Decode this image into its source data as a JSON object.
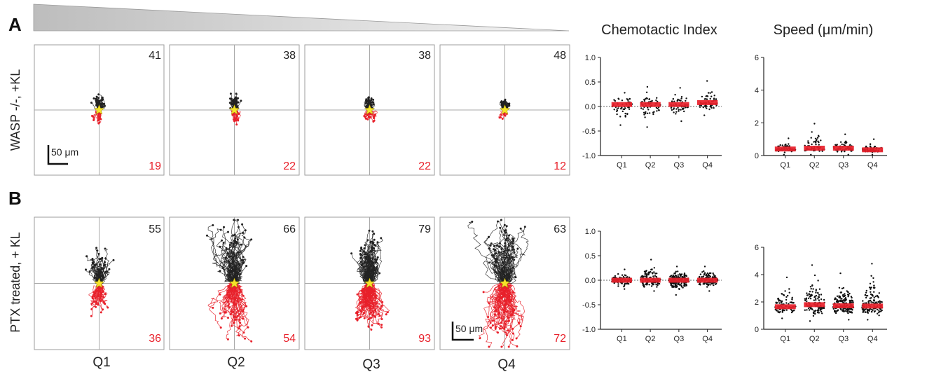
{
  "figure": {
    "gradient_colors": [
      "#bdbdbd",
      "#f4f4f4"
    ],
    "upward_color": "#222222",
    "downward_color": "#e8202a",
    "target_color": "#f5e32a",
    "rows": [
      {
        "letter": "A",
        "label": "WASP -/-, +KL",
        "scale_bar": "50 μm",
        "quadrants": [
          {
            "name": "Q1",
            "up": "41",
            "down": "19"
          },
          {
            "name": "Q2",
            "up": "38",
            "down": "22"
          },
          {
            "name": "Q3",
            "up": "38",
            "down": "22"
          },
          {
            "name": "Q4",
            "up": "48",
            "down": "12"
          }
        ]
      },
      {
        "letter": "B",
        "label": "PTX treated, + KL",
        "scale_bar": "50 μm",
        "quadrants": [
          {
            "name": "Q1",
            "up": "55",
            "down": "36"
          },
          {
            "name": "Q2",
            "up": "66",
            "down": "54"
          },
          {
            "name": "Q3",
            "up": "79",
            "down": "93"
          },
          {
            "name": "Q4",
            "up": "63",
            "down": "72"
          }
        ]
      }
    ],
    "column_labels": [
      "Q1",
      "Q2",
      "Q3",
      "Q4"
    ],
    "ci_title": "Chemotactic Index",
    "speed_title": "Speed (μm/min)"
  },
  "chart_data": [
    {
      "type": "scatter",
      "panel": "A",
      "title": "Chemotactic Index",
      "categories": [
        "Q1",
        "Q2",
        "Q3",
        "Q4"
      ],
      "ylim": [
        -1.0,
        1.0
      ],
      "yticks": [
        "1.0",
        "0.5",
        "0.0",
        "-0.5",
        "-1.0"
      ],
      "reference_line": 0.0,
      "n_points": [
        60,
        60,
        60,
        60
      ],
      "mean": [
        0.04,
        0.04,
        0.04,
        0.08
      ],
      "range": [
        [
          -0.38,
          0.28
        ],
        [
          -0.42,
          0.4
        ],
        [
          -0.3,
          0.38
        ],
        [
          -0.18,
          0.52
        ]
      ],
      "mean_color": "#e8202a"
    },
    {
      "type": "scatter",
      "panel": "A",
      "title": "Speed (μm/min)",
      "categories": [
        "Q1",
        "Q2",
        "Q3",
        "Q4"
      ],
      "ylim": [
        0,
        6
      ],
      "yticks": [
        "6",
        "4",
        "2",
        "0"
      ],
      "n_points": [
        60,
        60,
        60,
        60
      ],
      "mean": [
        0.4,
        0.45,
        0.45,
        0.35
      ],
      "range": [
        [
          0.05,
          1.05
        ],
        [
          0.05,
          1.95
        ],
        [
          0.05,
          1.3
        ],
        [
          0.05,
          1.0
        ]
      ],
      "mean_color": "#e8202a"
    },
    {
      "type": "scatter",
      "panel": "B",
      "title": "Chemotactic Index",
      "categories": [
        "Q1",
        "Q2",
        "Q3",
        "Q4"
      ],
      "ylim": [
        -1.0,
        1.0
      ],
      "yticks": [
        "1.0",
        "0.5",
        "0.0",
        "-0.5",
        "-1.0"
      ],
      "reference_line": 0.0,
      "n_points": [
        91,
        120,
        172,
        135
      ],
      "mean": [
        0.0,
        0.0,
        0.0,
        0.0
      ],
      "range": [
        [
          -0.18,
          0.22
        ],
        [
          -0.22,
          0.42
        ],
        [
          -0.3,
          0.28
        ],
        [
          -0.22,
          0.28
        ]
      ],
      "mean_color": "#e8202a"
    },
    {
      "type": "scatter",
      "panel": "B",
      "title": "Speed (μm/min)",
      "categories": [
        "Q1",
        "Q2",
        "Q3",
        "Q4"
      ],
      "ylim": [
        0,
        6
      ],
      "yticks": [
        "6",
        "4",
        "2",
        "0"
      ],
      "n_points": [
        91,
        120,
        172,
        135
      ],
      "mean": [
        1.65,
        1.8,
        1.72,
        1.7
      ],
      "range": [
        [
          0.8,
          3.8
        ],
        [
          0.6,
          4.7
        ],
        [
          0.7,
          4.1
        ],
        [
          0.7,
          4.8
        ]
      ],
      "mean_color": "#e8202a"
    }
  ]
}
